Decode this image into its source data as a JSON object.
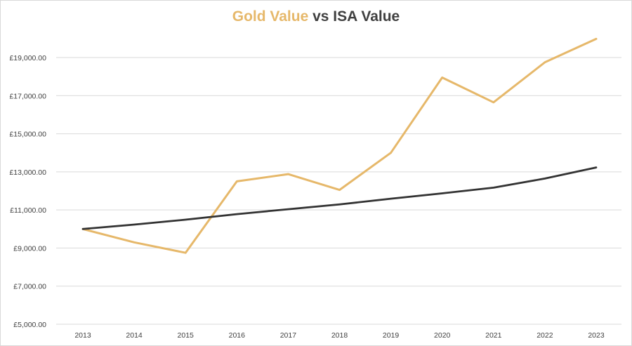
{
  "chart_data": {
    "type": "line",
    "title_parts": {
      "highlight": "Gold Value",
      "rest": " vs ISA Value"
    },
    "categories": [
      "2013",
      "2014",
      "2015",
      "2016",
      "2017",
      "2018",
      "2019",
      "2020",
      "2021",
      "2022",
      "2023"
    ],
    "series": [
      {
        "key": "gold",
        "color": "#e6b86a",
        "values": [
          10000,
          9300,
          8750,
          12500,
          12880,
          12050,
          14000,
          17950,
          16650,
          18750,
          19980
        ]
      },
      {
        "key": "isa",
        "color": "#333333",
        "values": [
          10000,
          10230,
          10490,
          10780,
          11040,
          11290,
          11590,
          11870,
          12170,
          12650,
          13230
        ]
      }
    ],
    "y_ticks": [
      {
        "value": 5000,
        "label": "£5,000.00"
      },
      {
        "value": 7000,
        "label": "£7,000.00"
      },
      {
        "value": 9000,
        "label": "£9,000.00"
      },
      {
        "value": 11000,
        "label": "£11,000.00"
      },
      {
        "value": 13000,
        "label": "£13,000.00"
      },
      {
        "value": 15000,
        "label": "£15,000.00"
      },
      {
        "value": 17000,
        "label": "£17,000.00"
      },
      {
        "value": 19000,
        "label": "£19,000.00"
      }
    ],
    "ylim": [
      5000,
      19000
    ],
    "grid": true,
    "gridline_color": "#d9d9d9"
  }
}
